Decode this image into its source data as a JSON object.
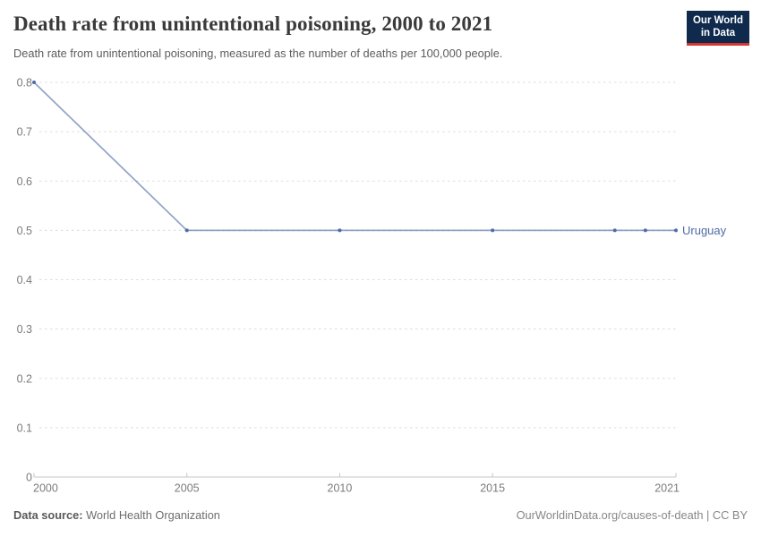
{
  "header": {
    "title": "Death rate from unintentional poisoning, 2000 to 2021",
    "subtitle": "Death rate from unintentional poisoning, measured as the number of deaths per 100,000 people.",
    "logo": {
      "line1": "Our World",
      "line2": "in Data",
      "bg_color": "#0f2a4d",
      "accent_color": "#d7352e"
    }
  },
  "chart_data": {
    "type": "line",
    "title": "Death rate from unintentional poisoning, 2000 to 2021",
    "xlabel": "",
    "ylabel": "",
    "xlim": [
      2000,
      2021
    ],
    "ylim": [
      0,
      0.8
    ],
    "grid": "horizontal-dashed",
    "legend_position": "end-of-line-label",
    "x_ticks": [
      {
        "value": 2000,
        "label": "2000"
      },
      {
        "value": 2005,
        "label": "2005"
      },
      {
        "value": 2010,
        "label": "2010"
      },
      {
        "value": 2015,
        "label": "2015"
      },
      {
        "value": 2021,
        "label": "2021"
      }
    ],
    "y_ticks": [
      {
        "value": 0,
        "label": "0"
      },
      {
        "value": 0.1,
        "label": "0.1"
      },
      {
        "value": 0.2,
        "label": "0.2"
      },
      {
        "value": 0.3,
        "label": "0.3"
      },
      {
        "value": 0.4,
        "label": "0.4"
      },
      {
        "value": 0.5,
        "label": "0.5"
      },
      {
        "value": 0.6,
        "label": "0.6"
      },
      {
        "value": 0.7,
        "label": "0.7"
      },
      {
        "value": 0.8,
        "label": "0.8"
      }
    ],
    "series": [
      {
        "name": "Uruguay",
        "color": "#4d6ba4",
        "points": [
          {
            "x": 2000,
            "y": 0.8
          },
          {
            "x": 2005,
            "y": 0.5
          },
          {
            "x": 2010,
            "y": 0.5
          },
          {
            "x": 2015,
            "y": 0.5
          },
          {
            "x": 2019,
            "y": 0.5
          },
          {
            "x": 2020,
            "y": 0.5
          },
          {
            "x": 2021,
            "y": 0.5
          }
        ]
      }
    ],
    "colors": {
      "gridline": "#dcdcdc",
      "axis": "#c4c4c4",
      "tick_label": "#7b7b7b"
    }
  },
  "footer": {
    "source_label": "Data source:",
    "source_value": "World Health Organization",
    "right_text": "OurWorldinData.org/causes-of-death | CC BY"
  }
}
